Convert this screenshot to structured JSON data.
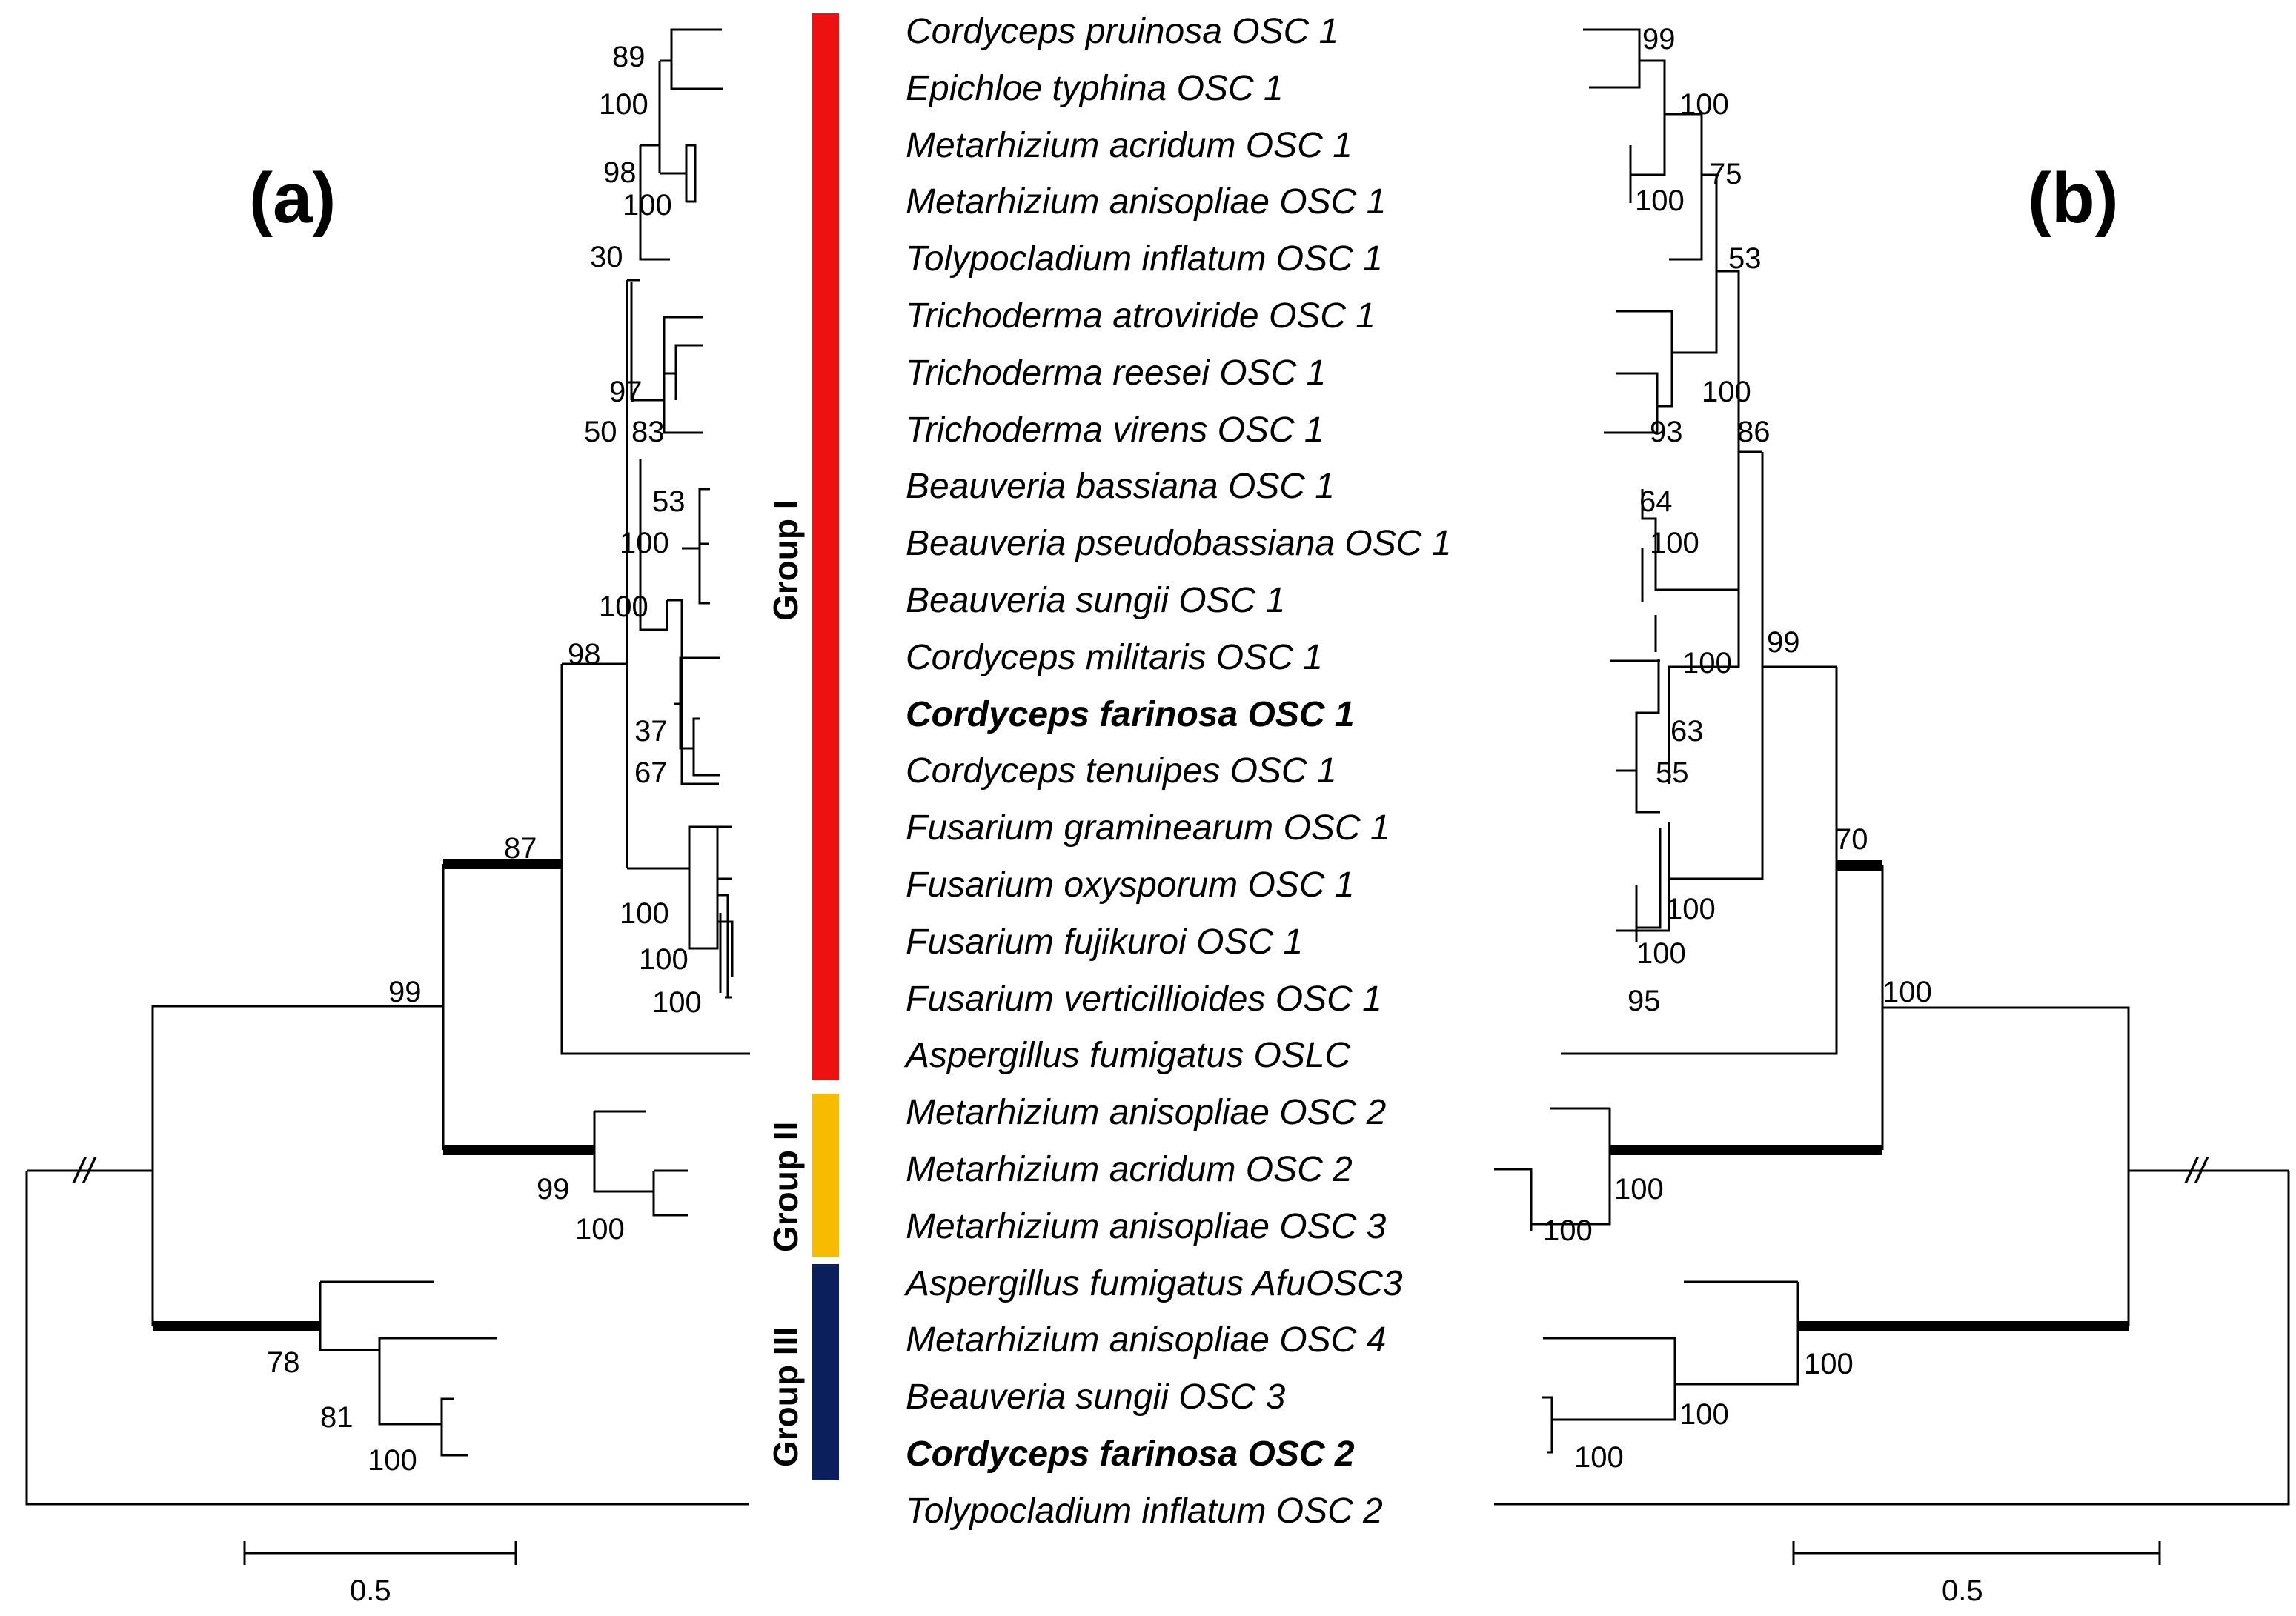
{
  "panels": {
    "a": "(a)",
    "b": "(b)"
  },
  "taxa": [
    {
      "name": "Cordyceps pruinosa OSC 1",
      "bold": false
    },
    {
      "name": "Epichloe typhina OSC 1",
      "bold": false
    },
    {
      "name": "Metarhizium acridum OSC 1",
      "bold": false
    },
    {
      "name": "Metarhizium anisopliae OSC 1",
      "bold": false
    },
    {
      "name": "Tolypocladium inflatum OSC 1",
      "bold": false
    },
    {
      "name": "Trichoderma atroviride OSC 1",
      "bold": false
    },
    {
      "name": "Trichoderma reesei OSC 1",
      "bold": false
    },
    {
      "name": "Trichoderma virens OSC 1",
      "bold": false
    },
    {
      "name": "Beauveria bassiana OSC 1",
      "bold": false
    },
    {
      "name": "Beauveria pseudobassiana OSC 1",
      "bold": false
    },
    {
      "name": "Beauveria sungii OSC 1",
      "bold": false
    },
    {
      "name": "Cordyceps militaris OSC 1",
      "bold": false
    },
    {
      "name": "Cordyceps farinosa OSC 1",
      "bold": true
    },
    {
      "name": "Cordyceps tenuipes OSC 1",
      "bold": false
    },
    {
      "name": "Fusarium graminearum OSC 1",
      "bold": false
    },
    {
      "name": "Fusarium oxysporum OSC 1",
      "bold": false
    },
    {
      "name": "Fusarium fujikuroi OSC 1",
      "bold": false
    },
    {
      "name": "Fusarium verticillioides OSC 1",
      "bold": false
    },
    {
      "name": "Aspergillus fumigatus  OSLC",
      "bold": false
    },
    {
      "name": "Metarhizium anisopliae OSC 2",
      "bold": false
    },
    {
      "name": "Metarhizium acridum OSC 2",
      "bold": false
    },
    {
      "name": "Metarhizium anisopliae OSC 3",
      "bold": false
    },
    {
      "name": "Aspergillus fumigatus AfuOSC3",
      "bold": false
    },
    {
      "name": "Metarhizium anisopliae OSC 4",
      "bold": false
    },
    {
      "name": "Beauveria sungii OSC 3",
      "bold": false
    },
    {
      "name": "Cordyceps farinosa OSC 2",
      "bold": true
    },
    {
      "name": "Tolypocladium inflatum OSC 2",
      "bold": false
    }
  ],
  "groups": [
    {
      "label": "Group I",
      "color": "#ee1111"
    },
    {
      "label": "Group II",
      "color": "#f7bb00"
    },
    {
      "label": "Group III",
      "color": "#0a1f5c"
    }
  ],
  "support_a": [
    "89",
    "100",
    "98",
    "100",
    "30",
    "97",
    "50",
    "83",
    "53",
    "100",
    "100",
    "98",
    "37",
    "67",
    "87",
    "100",
    "100",
    "100",
    "99",
    "99",
    "100",
    "78",
    "81",
    "100"
  ],
  "support_b": [
    "99",
    "100",
    "100",
    "75",
    "53",
    "100",
    "93",
    "86",
    "64",
    "100",
    "100",
    "99",
    "63",
    "55",
    "70",
    "100",
    "100",
    "95",
    "100",
    "100",
    "100",
    "100",
    "100",
    "100"
  ],
  "scale_bar": {
    "label_a": "0.5",
    "label_b": "0.5"
  },
  "break_mark": "//"
}
